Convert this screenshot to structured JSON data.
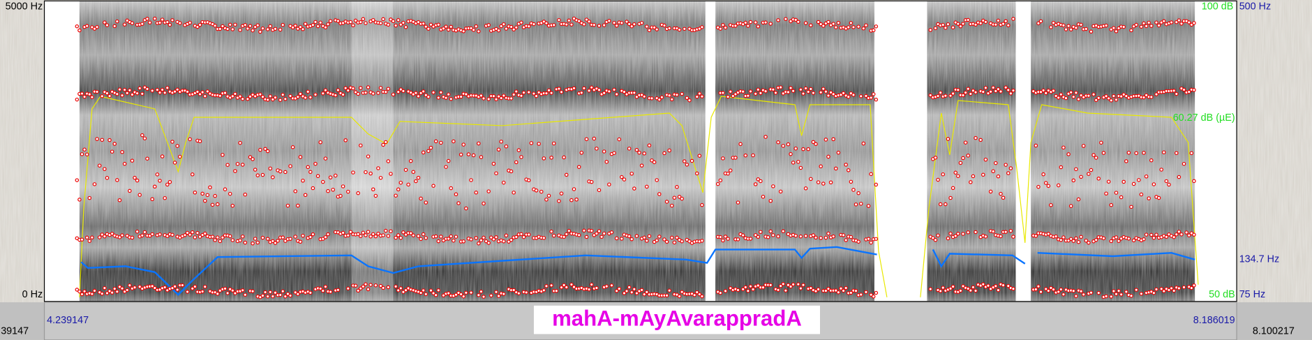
{
  "left_axis": {
    "top": "5000 Hz",
    "bottom": "0 Hz"
  },
  "right_axis": {
    "intensity_top": "100 dB",
    "pitch_top": "500 Hz",
    "intensity_cursor": "60.27 dB (µE)",
    "pitch_cursor": "134.7 Hz",
    "intensity_bottom": "50 dB",
    "pitch_bottom": "75 Hz"
  },
  "time_bar": {
    "left_outside": "39147",
    "start": "4.239147",
    "end": "8.186019",
    "right_outside": "8.100217"
  },
  "annotation": "mahA-mAyAvarappradA"
}
